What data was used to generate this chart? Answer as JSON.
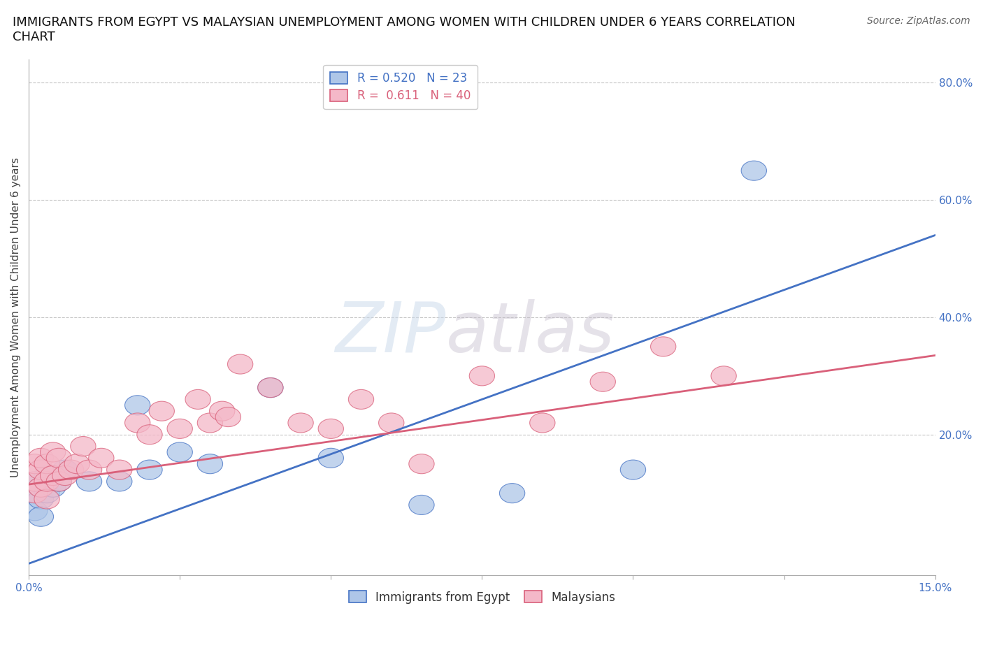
{
  "title": "IMMIGRANTS FROM EGYPT VS MALAYSIAN UNEMPLOYMENT AMONG WOMEN WITH CHILDREN UNDER 6 YEARS CORRELATION\nCHART",
  "source": "Source: ZipAtlas.com",
  "ylabel": "Unemployment Among Women with Children Under 6 years",
  "watermark_zip": "ZIP",
  "watermark_atlas": "atlas",
  "legend_blue_label": "Immigrants from Egypt",
  "legend_pink_label": "Malaysians",
  "R_blue": 0.52,
  "N_blue": 23,
  "R_pink": 0.611,
  "N_pink": 40,
  "blue_color": "#aec6e8",
  "blue_line_color": "#4472c4",
  "pink_color": "#f4b8c8",
  "pink_line_color": "#d9607a",
  "xlim": [
    0.0,
    0.15
  ],
  "ylim": [
    -0.04,
    0.84
  ],
  "xticks": [
    0.0,
    0.025,
    0.05,
    0.075,
    0.1,
    0.125,
    0.15
  ],
  "xtick_labels": [
    "0.0%",
    "",
    "",
    "",
    "",
    "",
    "15.0%"
  ],
  "right_ytick_positions": [
    0.2,
    0.4,
    0.6,
    0.8
  ],
  "right_ytick_labels": [
    "20.0%",
    "40.0%",
    "60.0%",
    "80.0%"
  ],
  "blue_scatter_x": [
    0.001,
    0.001,
    0.001,
    0.002,
    0.002,
    0.002,
    0.003,
    0.003,
    0.004,
    0.005,
    0.006,
    0.01,
    0.015,
    0.018,
    0.02,
    0.025,
    0.03,
    0.04,
    0.05,
    0.065,
    0.08,
    0.1,
    0.12
  ],
  "blue_scatter_y": [
    0.07,
    0.1,
    0.12,
    0.09,
    0.11,
    0.06,
    0.1,
    0.13,
    0.11,
    0.12,
    0.14,
    0.12,
    0.12,
    0.25,
    0.14,
    0.17,
    0.15,
    0.28,
    0.16,
    0.08,
    0.1,
    0.14,
    0.65
  ],
  "pink_scatter_x": [
    0.001,
    0.001,
    0.001,
    0.002,
    0.002,
    0.002,
    0.003,
    0.003,
    0.003,
    0.004,
    0.004,
    0.005,
    0.005,
    0.006,
    0.007,
    0.008,
    0.009,
    0.01,
    0.012,
    0.015,
    0.018,
    0.02,
    0.022,
    0.025,
    0.028,
    0.03,
    0.032,
    0.033,
    0.035,
    0.04,
    0.045,
    0.05,
    0.055,
    0.06,
    0.065,
    0.075,
    0.085,
    0.095,
    0.105,
    0.115
  ],
  "pink_scatter_y": [
    0.1,
    0.12,
    0.15,
    0.11,
    0.14,
    0.16,
    0.09,
    0.12,
    0.15,
    0.13,
    0.17,
    0.12,
    0.16,
    0.13,
    0.14,
    0.15,
    0.18,
    0.14,
    0.16,
    0.14,
    0.22,
    0.2,
    0.24,
    0.21,
    0.26,
    0.22,
    0.24,
    0.23,
    0.32,
    0.28,
    0.22,
    0.21,
    0.26,
    0.22,
    0.15,
    0.3,
    0.22,
    0.29,
    0.35,
    0.3
  ],
  "blue_line_x": [
    0.0,
    0.15
  ],
  "blue_line_y": [
    -0.02,
    0.54
  ],
  "pink_line_x": [
    0.0,
    0.15
  ],
  "pink_line_y": [
    0.115,
    0.335
  ],
  "background_color": "#ffffff",
  "grid_color": "#b8b8b8",
  "title_fontsize": 13,
  "axis_label_fontsize": 11,
  "tick_fontsize": 11,
  "legend_fontsize": 12,
  "marker_size": 160
}
